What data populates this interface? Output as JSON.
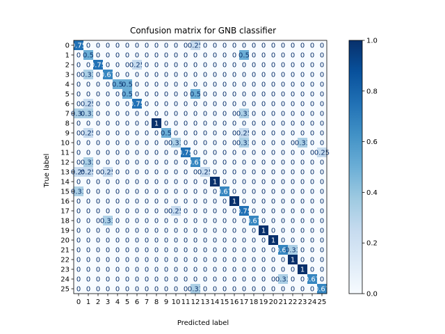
{
  "chart_data": {
    "type": "heatmap",
    "title": "Confusion matrix for GNB classifier",
    "xlabel": "Predicted label",
    "ylabel": "True label",
    "x_tick_labels": [
      "0",
      "1",
      "2",
      "3",
      "4",
      "5",
      "6",
      "7",
      "8",
      "9",
      "10",
      "11",
      "12",
      "13",
      "14",
      "15",
      "16",
      "17",
      "18",
      "19",
      "20",
      "21",
      "22",
      "23",
      "24",
      "25"
    ],
    "y_tick_labels": [
      "0",
      "1",
      "2",
      "3",
      "4",
      "5",
      "6",
      "7",
      "8",
      "9",
      "10",
      "11",
      "12",
      "13",
      "14",
      "15",
      "16",
      "17",
      "18",
      "19",
      "20",
      "21",
      "22",
      "23",
      "24",
      "25"
    ],
    "colormap": "Blues",
    "vmin": 0,
    "vmax": 1,
    "colorbar_ticks": [
      "0.0",
      "0.2",
      "0.4",
      "0.6",
      "0.8",
      "1.0"
    ],
    "matrix": [
      [
        0.75,
        0,
        0,
        0,
        0,
        0,
        0,
        0,
        0,
        0,
        0,
        0,
        0.25,
        0,
        0,
        0,
        0,
        0,
        0,
        0,
        0,
        0,
        0,
        0,
        0,
        0
      ],
      [
        0,
        0.5,
        0,
        0,
        0,
        0,
        0,
        0,
        0,
        0,
        0,
        0,
        0,
        0,
        0,
        0,
        0,
        0.5,
        0,
        0,
        0,
        0,
        0,
        0,
        0,
        0
      ],
      [
        0,
        0,
        0.75,
        0,
        0,
        0,
        0.25,
        0,
        0,
        0,
        0,
        0,
        0,
        0,
        0,
        0,
        0,
        0,
        0,
        0,
        0,
        0,
        0,
        0,
        0,
        0
      ],
      [
        0,
        0.33,
        0,
        0.67,
        0,
        0,
        0,
        0,
        0,
        0,
        0,
        0,
        0,
        0,
        0,
        0,
        0,
        0,
        0,
        0,
        0,
        0,
        0,
        0,
        0,
        0
      ],
      [
        0,
        0,
        0,
        0,
        0.5,
        0.5,
        0,
        0,
        0,
        0,
        0,
        0,
        0,
        0,
        0,
        0,
        0,
        0,
        0,
        0,
        0,
        0,
        0,
        0,
        0,
        0
      ],
      [
        0,
        0,
        0,
        0,
        0,
        0.5,
        0,
        0,
        0,
        0,
        0,
        0,
        0.5,
        0,
        0,
        0,
        0,
        0,
        0,
        0,
        0,
        0,
        0,
        0,
        0,
        0
      ],
      [
        0,
        0.25,
        0,
        0,
        0,
        0,
        0.75,
        0,
        0,
        0,
        0,
        0,
        0,
        0,
        0,
        0,
        0,
        0,
        0,
        0,
        0,
        0,
        0,
        0,
        0,
        0
      ],
      [
        0.33,
        0.33,
        0,
        0,
        0,
        0,
        0,
        0,
        0,
        0,
        0,
        0,
        0,
        0,
        0,
        0,
        0,
        0.33,
        0,
        0,
        0,
        0,
        0,
        0,
        0,
        0
      ],
      [
        0,
        0,
        0,
        0,
        0,
        0,
        0,
        0,
        1,
        0,
        0,
        0,
        0,
        0,
        0,
        0,
        0,
        0,
        0,
        0,
        0,
        0,
        0,
        0,
        0,
        0
      ],
      [
        0,
        0.25,
        0,
        0,
        0,
        0,
        0,
        0,
        0,
        0.5,
        0,
        0,
        0,
        0,
        0,
        0,
        0,
        0.25,
        0,
        0,
        0,
        0,
        0,
        0,
        0,
        0
      ],
      [
        0,
        0,
        0,
        0,
        0,
        0,
        0,
        0,
        0,
        0,
        0.33,
        0,
        0,
        0,
        0,
        0,
        0,
        0.33,
        0,
        0,
        0,
        0,
        0,
        0.33,
        0,
        0
      ],
      [
        0,
        0,
        0,
        0,
        0,
        0,
        0,
        0,
        0,
        0,
        0,
        0.75,
        0,
        0,
        0,
        0,
        0,
        0,
        0,
        0,
        0,
        0,
        0,
        0,
        0,
        0.25
      ],
      [
        0,
        0.33,
        0,
        0,
        0,
        0,
        0,
        0,
        0,
        0,
        0,
        0,
        0.67,
        0,
        0,
        0,
        0,
        0,
        0,
        0,
        0,
        0,
        0,
        0,
        0,
        0
      ],
      [
        0.25,
        0.25,
        0,
        0.25,
        0,
        0,
        0,
        0,
        0,
        0,
        0,
        0,
        0,
        0.25,
        0,
        0,
        0,
        0,
        0,
        0,
        0,
        0,
        0,
        0,
        0,
        0
      ],
      [
        0,
        0,
        0,
        0,
        0,
        0,
        0,
        0,
        0,
        0,
        0,
        0,
        0,
        0,
        1,
        0,
        0,
        0,
        0,
        0,
        0,
        0,
        0,
        0,
        0,
        0
      ],
      [
        0.33,
        0,
        0,
        0,
        0,
        0,
        0,
        0,
        0,
        0,
        0,
        0,
        0,
        0,
        0,
        0.67,
        0,
        0,
        0,
        0,
        0,
        0,
        0,
        0,
        0,
        0
      ],
      [
        0,
        0,
        0,
        0,
        0,
        0,
        0,
        0,
        0,
        0,
        0,
        0,
        0,
        0,
        0,
        0,
        1,
        0,
        0,
        0,
        0,
        0,
        0,
        0,
        0,
        0
      ],
      [
        0,
        0,
        0,
        0,
        0,
        0,
        0,
        0,
        0,
        0,
        0.25,
        0,
        0,
        0,
        0,
        0,
        0,
        0.75,
        0,
        0,
        0,
        0,
        0,
        0,
        0,
        0
      ],
      [
        0,
        0,
        0,
        0.33,
        0,
        0,
        0,
        0,
        0,
        0,
        0,
        0,
        0,
        0,
        0,
        0,
        0,
        0,
        0.67,
        0,
        0,
        0,
        0,
        0,
        0,
        0
      ],
      [
        0,
        0,
        0,
        0,
        0,
        0,
        0,
        0,
        0,
        0,
        0,
        0,
        0,
        0,
        0,
        0,
        0,
        0,
        0,
        1,
        0,
        0,
        0,
        0,
        0,
        0
      ],
      [
        0,
        0,
        0,
        0,
        0,
        0,
        0,
        0,
        0,
        0,
        0,
        0,
        0,
        0,
        0,
        0,
        0,
        0,
        0,
        0,
        1,
        0,
        0,
        0,
        0,
        0
      ],
      [
        0,
        0,
        0,
        0,
        0,
        0,
        0,
        0,
        0,
        0,
        0,
        0,
        0,
        0,
        0,
        0,
        0,
        0,
        0,
        0,
        0,
        0.67,
        0.33,
        0,
        0,
        0
      ],
      [
        0,
        0,
        0,
        0,
        0,
        0,
        0,
        0,
        0,
        0,
        0,
        0,
        0,
        0,
        0,
        0,
        0,
        0,
        0,
        0,
        0,
        0,
        1,
        0,
        0,
        0
      ],
      [
        0,
        0,
        0,
        0,
        0,
        0,
        0,
        0,
        0,
        0,
        0,
        0,
        0,
        0,
        0,
        0,
        0,
        0,
        0,
        0,
        0,
        0,
        0,
        1,
        0,
        0
      ],
      [
        0,
        0,
        0,
        0,
        0,
        0,
        0,
        0,
        0,
        0,
        0,
        0,
        0,
        0,
        0,
        0,
        0,
        0,
        0,
        0,
        0,
        0.33,
        0,
        0,
        0.67,
        0
      ],
      [
        0,
        0,
        0,
        0,
        0,
        0,
        0,
        0,
        0,
        0,
        0,
        0,
        0.33,
        0,
        0,
        0,
        0,
        0,
        0,
        0,
        0,
        0,
        0,
        0,
        0,
        0.67
      ]
    ]
  }
}
